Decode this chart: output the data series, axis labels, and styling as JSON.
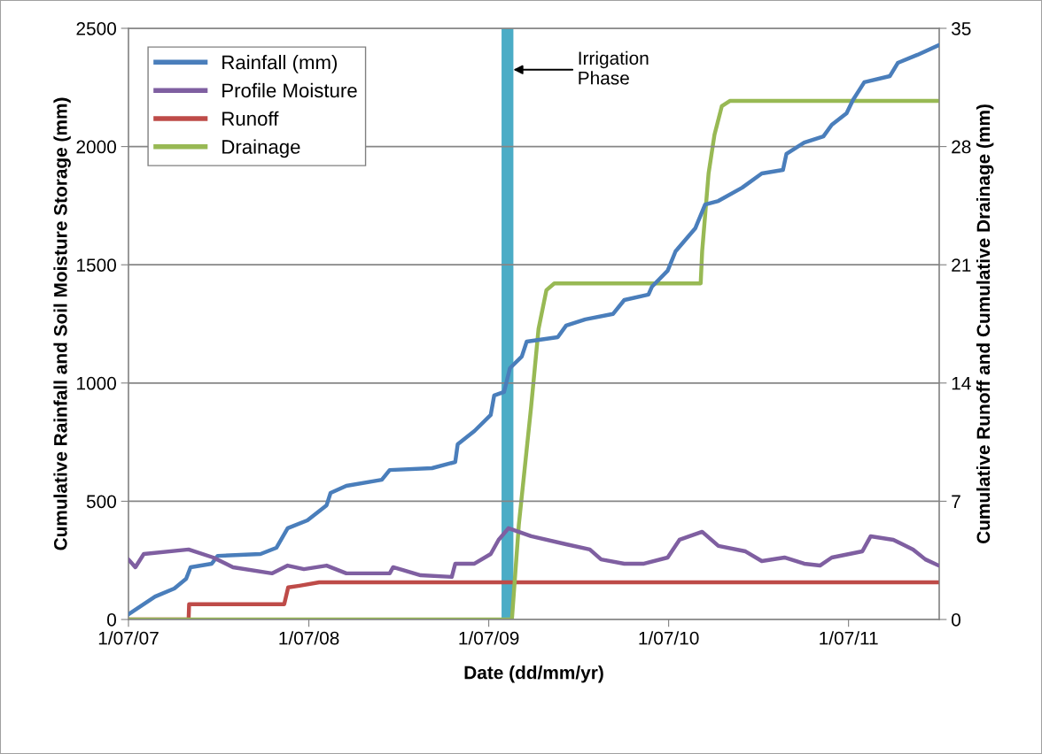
{
  "chart_data": {
    "type": "line",
    "xlabel": "Date (dd/mm/yr)",
    "ylabel": "Cumulative Rainfall and Soil Moisture Storage (mm)",
    "y2label": "Cumulative Runoff and Cumulative Drainage (mm)",
    "xlim": [
      "2007-07-01",
      "2012-01-01"
    ],
    "xticks": [
      {
        "value": "2007-07-01",
        "label": "1/07/07"
      },
      {
        "value": "2008-07-01",
        "label": "1/07/08"
      },
      {
        "value": "2009-07-01",
        "label": "1/07/09"
      },
      {
        "value": "2010-07-01",
        "label": "1/07/10"
      },
      {
        "value": "2011-07-01",
        "label": "1/07/11"
      }
    ],
    "ylim": [
      0,
      2500
    ],
    "yticks": [
      0,
      500,
      1000,
      1500,
      2000,
      2500
    ],
    "y2lim": [
      0,
      35
    ],
    "y2ticks": [
      0,
      7,
      14,
      21,
      28,
      35
    ],
    "grid": "y",
    "legend": "top left",
    "line_style": "solid",
    "marker": "none",
    "bands": [
      {
        "axis": "x",
        "from": "2009-07-27",
        "to": "2009-08-20",
        "label": "Irrigation\nPhase",
        "color": "#4bacc6"
      }
    ],
    "series": [
      {
        "name": "Rainfall (mm)",
        "color": "#4a7ebb",
        "x": [
          "2007-07-01",
          "2007-08-24",
          "2007-10-02",
          "2007-10-26",
          "2007-11-04",
          "2007-12-17",
          "2007-12-29",
          "2008-03-25",
          "2008-04-26",
          "2008-05-19",
          "2008-06-28",
          "2008-08-06",
          "2008-08-14",
          "2008-09-15",
          "2008-11-26",
          "2008-12-12",
          "2009-03-08",
          "2009-04-24",
          "2009-04-29",
          "2009-06-02",
          "2009-07-05",
          "2009-07-12",
          "2009-08-01",
          "2009-08-13",
          "2009-09-06",
          "2009-09-16",
          "2009-11-18",
          "2009-12-05",
          "2010-01-13",
          "2010-03-10",
          "2010-04-02",
          "2010-05-21",
          "2010-05-28",
          "2010-06-29",
          "2010-07-15",
          "2010-08-24",
          "2010-09-13",
          "2010-10-10",
          "2010-11-27",
          "2011-01-06",
          "2011-02-18",
          "2011-02-25",
          "2011-04-02",
          "2011-05-11",
          "2011-05-28",
          "2011-06-27",
          "2011-07-10",
          "2011-08-02",
          "2011-09-23",
          "2011-10-09",
          "2011-11-18",
          "2011-12-31"
        ],
        "values": [
          22,
          97,
          131,
          172,
          221,
          236,
          269,
          277,
          303,
          386,
          419,
          483,
          535,
          565,
          591,
          632,
          640,
          666,
          741,
          797,
          865,
          947,
          962,
          1063,
          1112,
          1175,
          1194,
          1243,
          1269,
          1292,
          1351,
          1374,
          1407,
          1475,
          1557,
          1654,
          1755,
          1770,
          1826,
          1886,
          1901,
          1969,
          2017,
          2043,
          2092,
          2141,
          2197,
          2272,
          2298,
          2354,
          2388,
          2429
        ]
      },
      {
        "name": "Profile Moisture",
        "color": "#7f5fa1",
        "x": [
          "2007-07-01",
          "2007-07-15",
          "2007-08-01",
          "2007-10-31",
          "2007-12-20",
          "2008-01-29",
          "2008-04-17",
          "2008-05-19",
          "2008-06-21",
          "2008-08-06",
          "2008-09-15",
          "2008-12-12",
          "2008-12-19",
          "2009-02-13",
          "2009-04-17",
          "2009-04-24",
          "2009-06-02",
          "2009-07-05",
          "2009-07-21",
          "2009-08-10",
          "2009-09-25",
          "2009-12-05",
          "2010-01-22",
          "2010-02-14",
          "2010-04-02",
          "2010-05-12",
          "2010-06-29",
          "2010-07-23",
          "2010-09-07",
          "2010-10-10",
          "2010-12-04",
          "2011-01-06",
          "2011-02-21",
          "2011-04-02",
          "2011-05-04",
          "2011-05-28",
          "2011-07-29",
          "2011-08-15",
          "2011-09-30",
          "2011-11-09",
          "2011-12-04",
          "2011-12-31"
        ],
        "values": [
          254,
          221,
          277,
          296,
          262,
          221,
          195,
          228,
          213,
          228,
          195,
          195,
          221,
          187,
          180,
          236,
          236,
          277,
          337,
          386,
          352,
          318,
          296,
          254,
          236,
          236,
          262,
          337,
          371,
          311,
          288,
          247,
          262,
          236,
          228,
          262,
          288,
          352,
          337,
          296,
          254,
          228
        ]
      },
      {
        "name": "Runoff",
        "color": "#be4b48",
        "axis": "y2",
        "x": [
          "2007-07-01",
          "2007-10-31",
          "2007-11-01",
          "2008-05-12",
          "2008-05-20",
          "2008-06-12",
          "2008-07-22",
          "2011-12-31"
        ],
        "values": [
          0,
          0,
          0.9,
          0.9,
          1.9,
          2.0,
          2.2,
          2.2
        ]
      },
      {
        "name": "Drainage",
        "color": "#98b954",
        "axis": "y2",
        "x": [
          "2007-07-01",
          "2009-08-17",
          "2009-08-31",
          "2009-09-25",
          "2009-10-10",
          "2009-10-26",
          "2009-11-11",
          "2010-09-04",
          "2010-09-07",
          "2010-09-20",
          "2010-10-02",
          "2010-10-17",
          "2010-11-02",
          "2011-12-31"
        ],
        "values": [
          0,
          0,
          5.6,
          12.6,
          17.2,
          19.5,
          19.9,
          19.9,
          21.8,
          26.4,
          28.7,
          30.4,
          30.7,
          30.7
        ]
      }
    ]
  }
}
